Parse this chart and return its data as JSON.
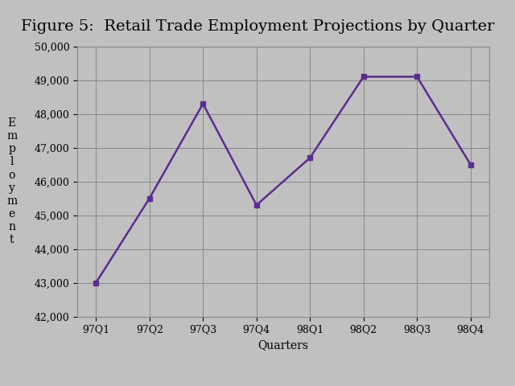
{
  "title": "Figure 5:  Retail Trade Employment Projections by Quarter",
  "xlabel": "Quarters",
  "ylabel": "E\nm\np\nl\no\ny\nm\ne\nn\nt",
  "quarters": [
    "97Q1",
    "97Q2",
    "97Q3",
    "97Q4",
    "98Q1",
    "98Q2",
    "98Q3",
    "98Q4"
  ],
  "values": [
    43000,
    45500,
    48300,
    45300,
    46700,
    49100,
    49100,
    46500
  ],
  "ylim": [
    42000,
    50000
  ],
  "yticks": [
    42000,
    43000,
    44000,
    45000,
    46000,
    47000,
    48000,
    49000,
    50000
  ],
  "line_color": "#5B2D8E",
  "marker": "s",
  "marker_size": 5,
  "line_width": 1.8,
  "bg_color": "#C0C0C0",
  "plot_bg_color": "#C0C0C0",
  "grid_color": "#888888",
  "title_fontsize": 14,
  "axis_label_fontsize": 10,
  "tick_fontsize": 9
}
